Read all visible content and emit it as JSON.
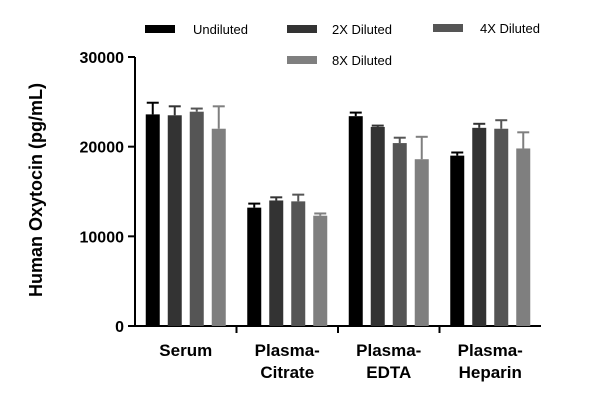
{
  "chart_data": {
    "type": "bar",
    "title": "",
    "xlabel": "",
    "ylabel": "Human Oxytocin (pg/mL)",
    "ylim": [
      0,
      30000
    ],
    "yticks": [
      0,
      10000,
      20000,
      30000
    ],
    "ytick_labels": [
      "0",
      "10000",
      "20000",
      "30000"
    ],
    "grid": false,
    "legend_position": "top",
    "categories": [
      [
        "Serum"
      ],
      [
        "Plasma-",
        "Citrate"
      ],
      [
        "Plasma-",
        "EDTA"
      ],
      [
        "Plasma-",
        "Heparin"
      ]
    ],
    "series": [
      {
        "name": "Undiluted",
        "color": "#000000",
        "values": [
          23600,
          13200,
          23400,
          19000
        ],
        "errors": [
          1300,
          450,
          400,
          350
        ]
      },
      {
        "name": "2X Diluted",
        "color": "#333333",
        "values": [
          23500,
          14000,
          22200,
          22100
        ],
        "errors": [
          1000,
          350,
          150,
          450
        ]
      },
      {
        "name": "4X Diluted",
        "color": "#555555",
        "values": [
          23900,
          13900,
          20400,
          22000
        ],
        "errors": [
          350,
          750,
          600,
          950
        ]
      },
      {
        "name": "8X Diluted",
        "color": "#7f7f7f",
        "values": [
          22000,
          12300,
          18600,
          19800
        ],
        "errors": [
          2500,
          250,
          2500,
          1800
        ]
      }
    ]
  }
}
